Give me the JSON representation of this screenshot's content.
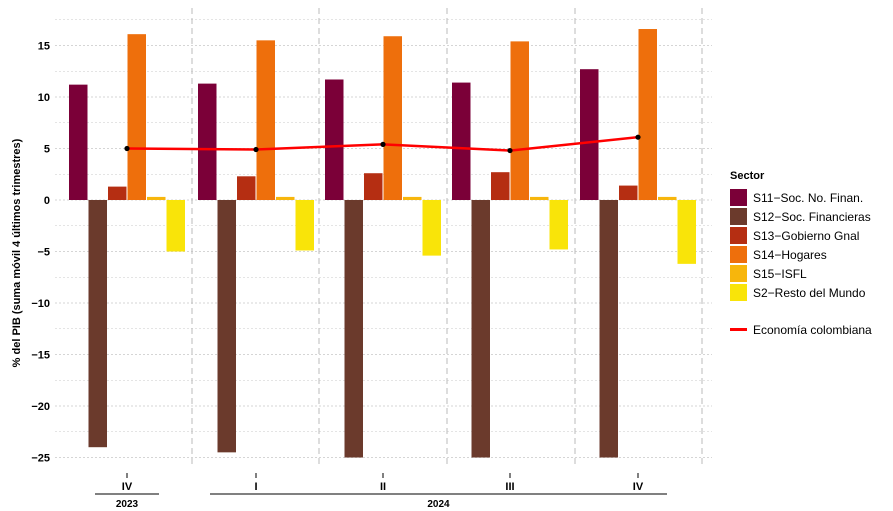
{
  "chart_data": {
    "type": "bar",
    "ylabel": "% del PIB (suma móvil 4 últimos trimestres)",
    "ylim": [
      -26.5,
      18
    ],
    "yticks": [
      15,
      10,
      5,
      0,
      -5,
      -10,
      -15,
      -20,
      -25
    ],
    "ytick_labels": [
      "15",
      "10",
      "5",
      "0",
      "−5",
      "−10",
      "−15",
      "−20",
      "−25"
    ],
    "categories": [
      "IV",
      "I",
      "II",
      "III",
      "IV"
    ],
    "year_groups": [
      {
        "label": "2023",
        "span": [
          0,
          0
        ]
      },
      {
        "label": "2024",
        "span": [
          1,
          4
        ]
      }
    ],
    "series": [
      {
        "name": "S11−Soc. No. Finan.",
        "color": "#7b0038",
        "values": [
          11.2,
          11.3,
          11.7,
          11.4,
          12.7
        ]
      },
      {
        "name": "S12−Soc. Financieras",
        "color": "#6b3a2c",
        "values": [
          -24.0,
          -24.5,
          -25.0,
          -25.0,
          -25.0
        ]
      },
      {
        "name": "S13−Gobierno Gnal",
        "color": "#b52e12",
        "values": [
          1.3,
          2.3,
          2.6,
          2.7,
          1.4
        ]
      },
      {
        "name": "S14−Hogares",
        "color": "#ee6f0c",
        "values": [
          16.1,
          15.5,
          15.9,
          15.4,
          16.6
        ]
      },
      {
        "name": "S15−ISFL",
        "color": "#f7b60c",
        "values": [
          0.3,
          0.3,
          0.3,
          0.3,
          0.3
        ]
      },
      {
        "name": "S2−Resto del Mundo",
        "color": "#f9e409",
        "values": [
          -5.0,
          -4.9,
          -5.4,
          -4.8,
          -6.2
        ]
      }
    ],
    "line_series": {
      "name": "Economía colombiana",
      "color": "#ff0000",
      "values": [
        5.0,
        4.9,
        5.4,
        4.8,
        6.1
      ]
    },
    "legend": {
      "title": "Sector",
      "position": "right"
    },
    "grid": true
  }
}
